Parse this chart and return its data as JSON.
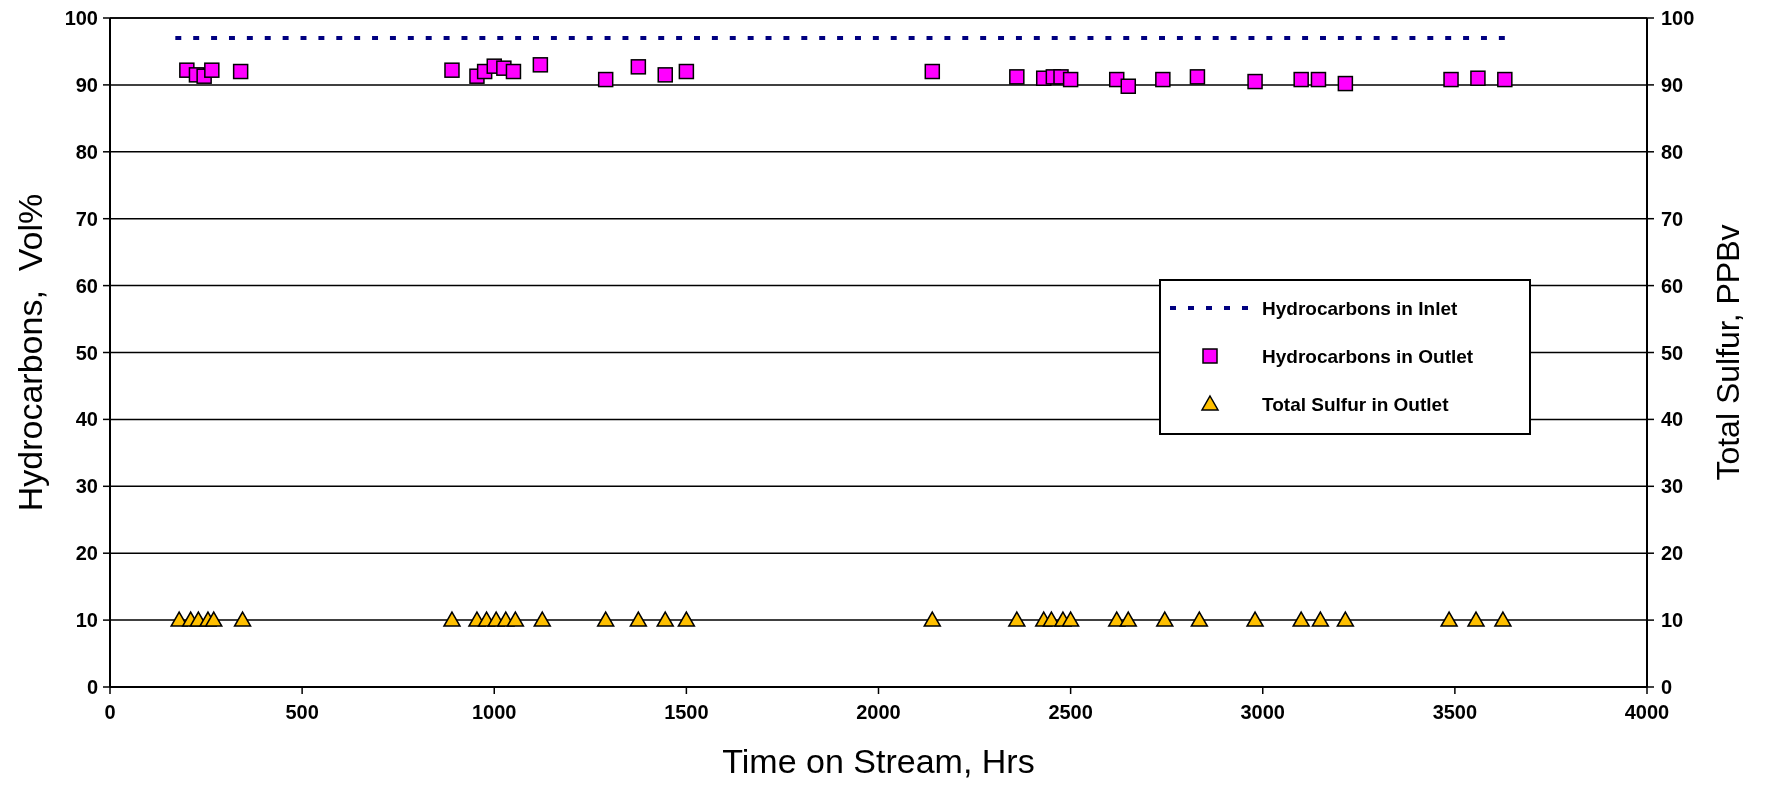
{
  "chart_data": {
    "type": "scatter",
    "xlabel": "Time on Stream, Hrs",
    "ylabel": "Hydrocarbons,  Vol%",
    "y2label": "Total Sulfur, PPBv",
    "xlim": [
      0,
      4000
    ],
    "xticks": [
      0,
      500,
      1000,
      1500,
      2000,
      2500,
      3000,
      3500,
      4000
    ],
    "ylim": [
      0,
      100
    ],
    "yticks": [
      0,
      10,
      20,
      30,
      40,
      50,
      60,
      70,
      80,
      90,
      100
    ],
    "y2lim": [
      0,
      100
    ],
    "y2ticks": [
      0,
      10,
      20,
      30,
      40,
      50,
      60,
      70,
      80,
      90,
      100
    ],
    "grid": "y",
    "legend": "right",
    "series": [
      {
        "name": "Hydrocarbons in Inlet",
        "type": "line",
        "line_style": "dotted",
        "marker": "none",
        "color": "#000080",
        "x": [
          170,
          3630
        ],
        "values": [
          97,
          97
        ]
      },
      {
        "name": "Hydrocarbons in Outlet",
        "type": "scatter",
        "marker": "square",
        "color": "#ff00ff",
        "x": [
          200,
          225,
          245,
          265,
          340,
          890,
          955,
          975,
          1000,
          1025,
          1050,
          1120,
          1290,
          1375,
          1445,
          1500,
          2140,
          2360,
          2430,
          2455,
          2475,
          2500,
          2620,
          2650,
          2740,
          2830,
          2980,
          3100,
          3145,
          3215,
          3490,
          3560,
          3630
        ],
        "values": [
          92.2,
          91.5,
          91.3,
          92.2,
          92,
          92.2,
          91.3,
          92,
          92.8,
          92.5,
          92,
          93,
          90.8,
          92.7,
          91.5,
          92,
          92,
          91.2,
          91,
          91.2,
          91.2,
          90.8,
          90.8,
          89.8,
          90.8,
          91.2,
          90.5,
          90.8,
          90.8,
          90.2,
          90.8,
          91,
          90.8
        ]
      },
      {
        "name": "Total Sulfur in Outlet",
        "type": "scatter",
        "marker": "triangle",
        "color": "#ffc000",
        "x": [
          180,
          210,
          230,
          255,
          270,
          345,
          890,
          955,
          980,
          1005,
          1030,
          1055,
          1125,
          1290,
          1375,
          1445,
          1500,
          2140,
          2360,
          2430,
          2450,
          2480,
          2500,
          2620,
          2650,
          2745,
          2835,
          2980,
          3100,
          3150,
          3215,
          3485,
          3555,
          3625
        ],
        "values": [
          10,
          10,
          10,
          10,
          10,
          10,
          10,
          10,
          10,
          10,
          10,
          10,
          10,
          10,
          10,
          10,
          10,
          10,
          10,
          10,
          10,
          10,
          10,
          10,
          10,
          10,
          10,
          10,
          10,
          10,
          10,
          10,
          10,
          10
        ]
      }
    ]
  }
}
